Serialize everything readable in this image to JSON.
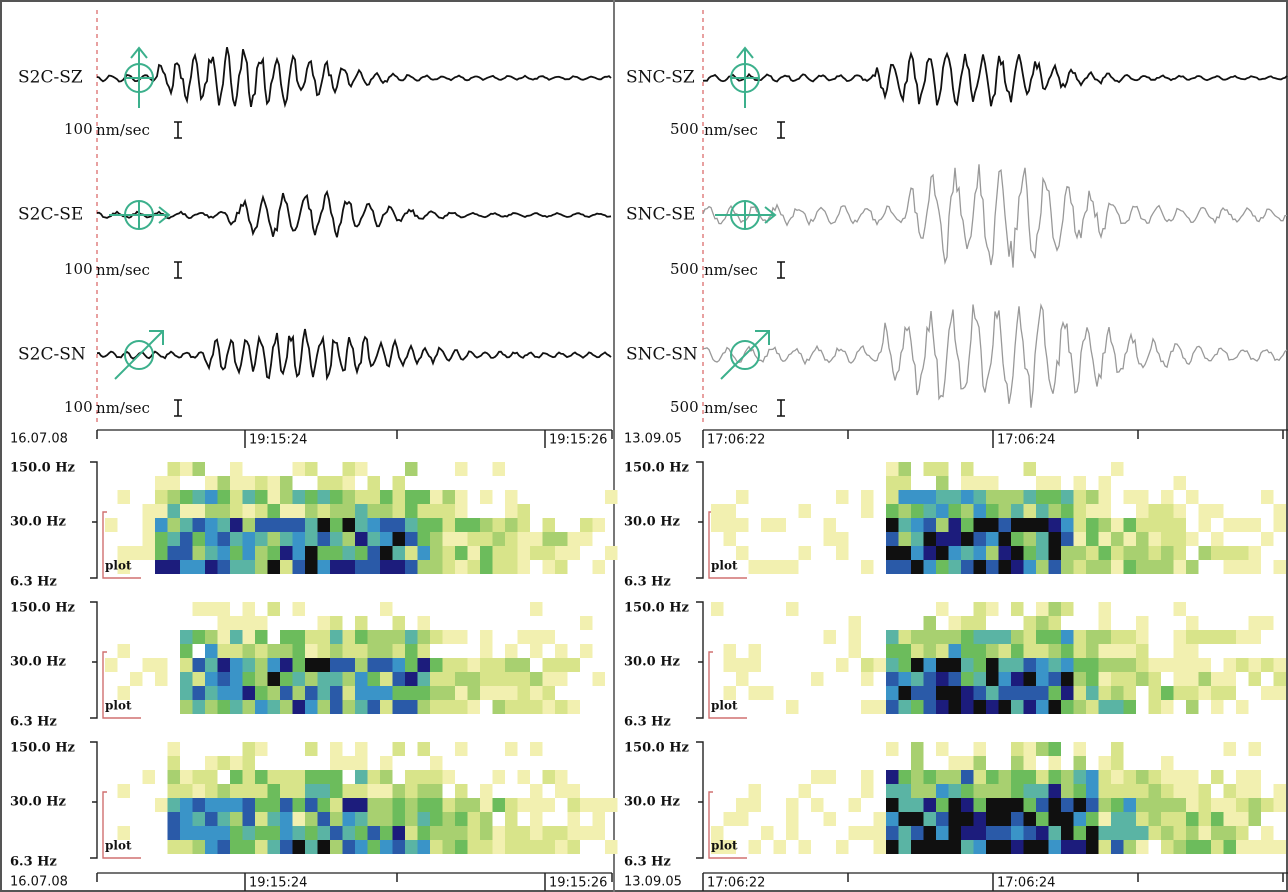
{
  "panels": [
    {
      "date": "16.07.08",
      "time_labels": [
        "19:15:24",
        "19:15:26"
      ],
      "traces": [
        {
          "station": "S2C-SZ",
          "scale": "100",
          "unit": "nm/sec"
        },
        {
          "station": "S2C-SE",
          "scale": "100",
          "unit": "nm/sec"
        },
        {
          "station": "S2C-SN",
          "scale": "100",
          "unit": "nm/sec"
        }
      ],
      "freq_labels": [
        "150.0 Hz",
        "30.0 Hz",
        "6.3 Hz"
      ],
      "plot_label": "plot"
    },
    {
      "date": "13.09.05",
      "time_labels": [
        "17:06:22",
        "17:06:24"
      ],
      "traces": [
        {
          "station": "SNC-SZ",
          "scale": "500",
          "unit": "nm/sec"
        },
        {
          "station": "SNC-SE",
          "scale": "500",
          "unit": "nm/sec"
        },
        {
          "station": "SNC-SN",
          "scale": "500",
          "unit": "nm/sec"
        }
      ],
      "freq_labels": [
        "150.0 Hz",
        "30.0 Hz",
        "6.3 Hz"
      ],
      "plot_label": "plot"
    }
  ]
}
